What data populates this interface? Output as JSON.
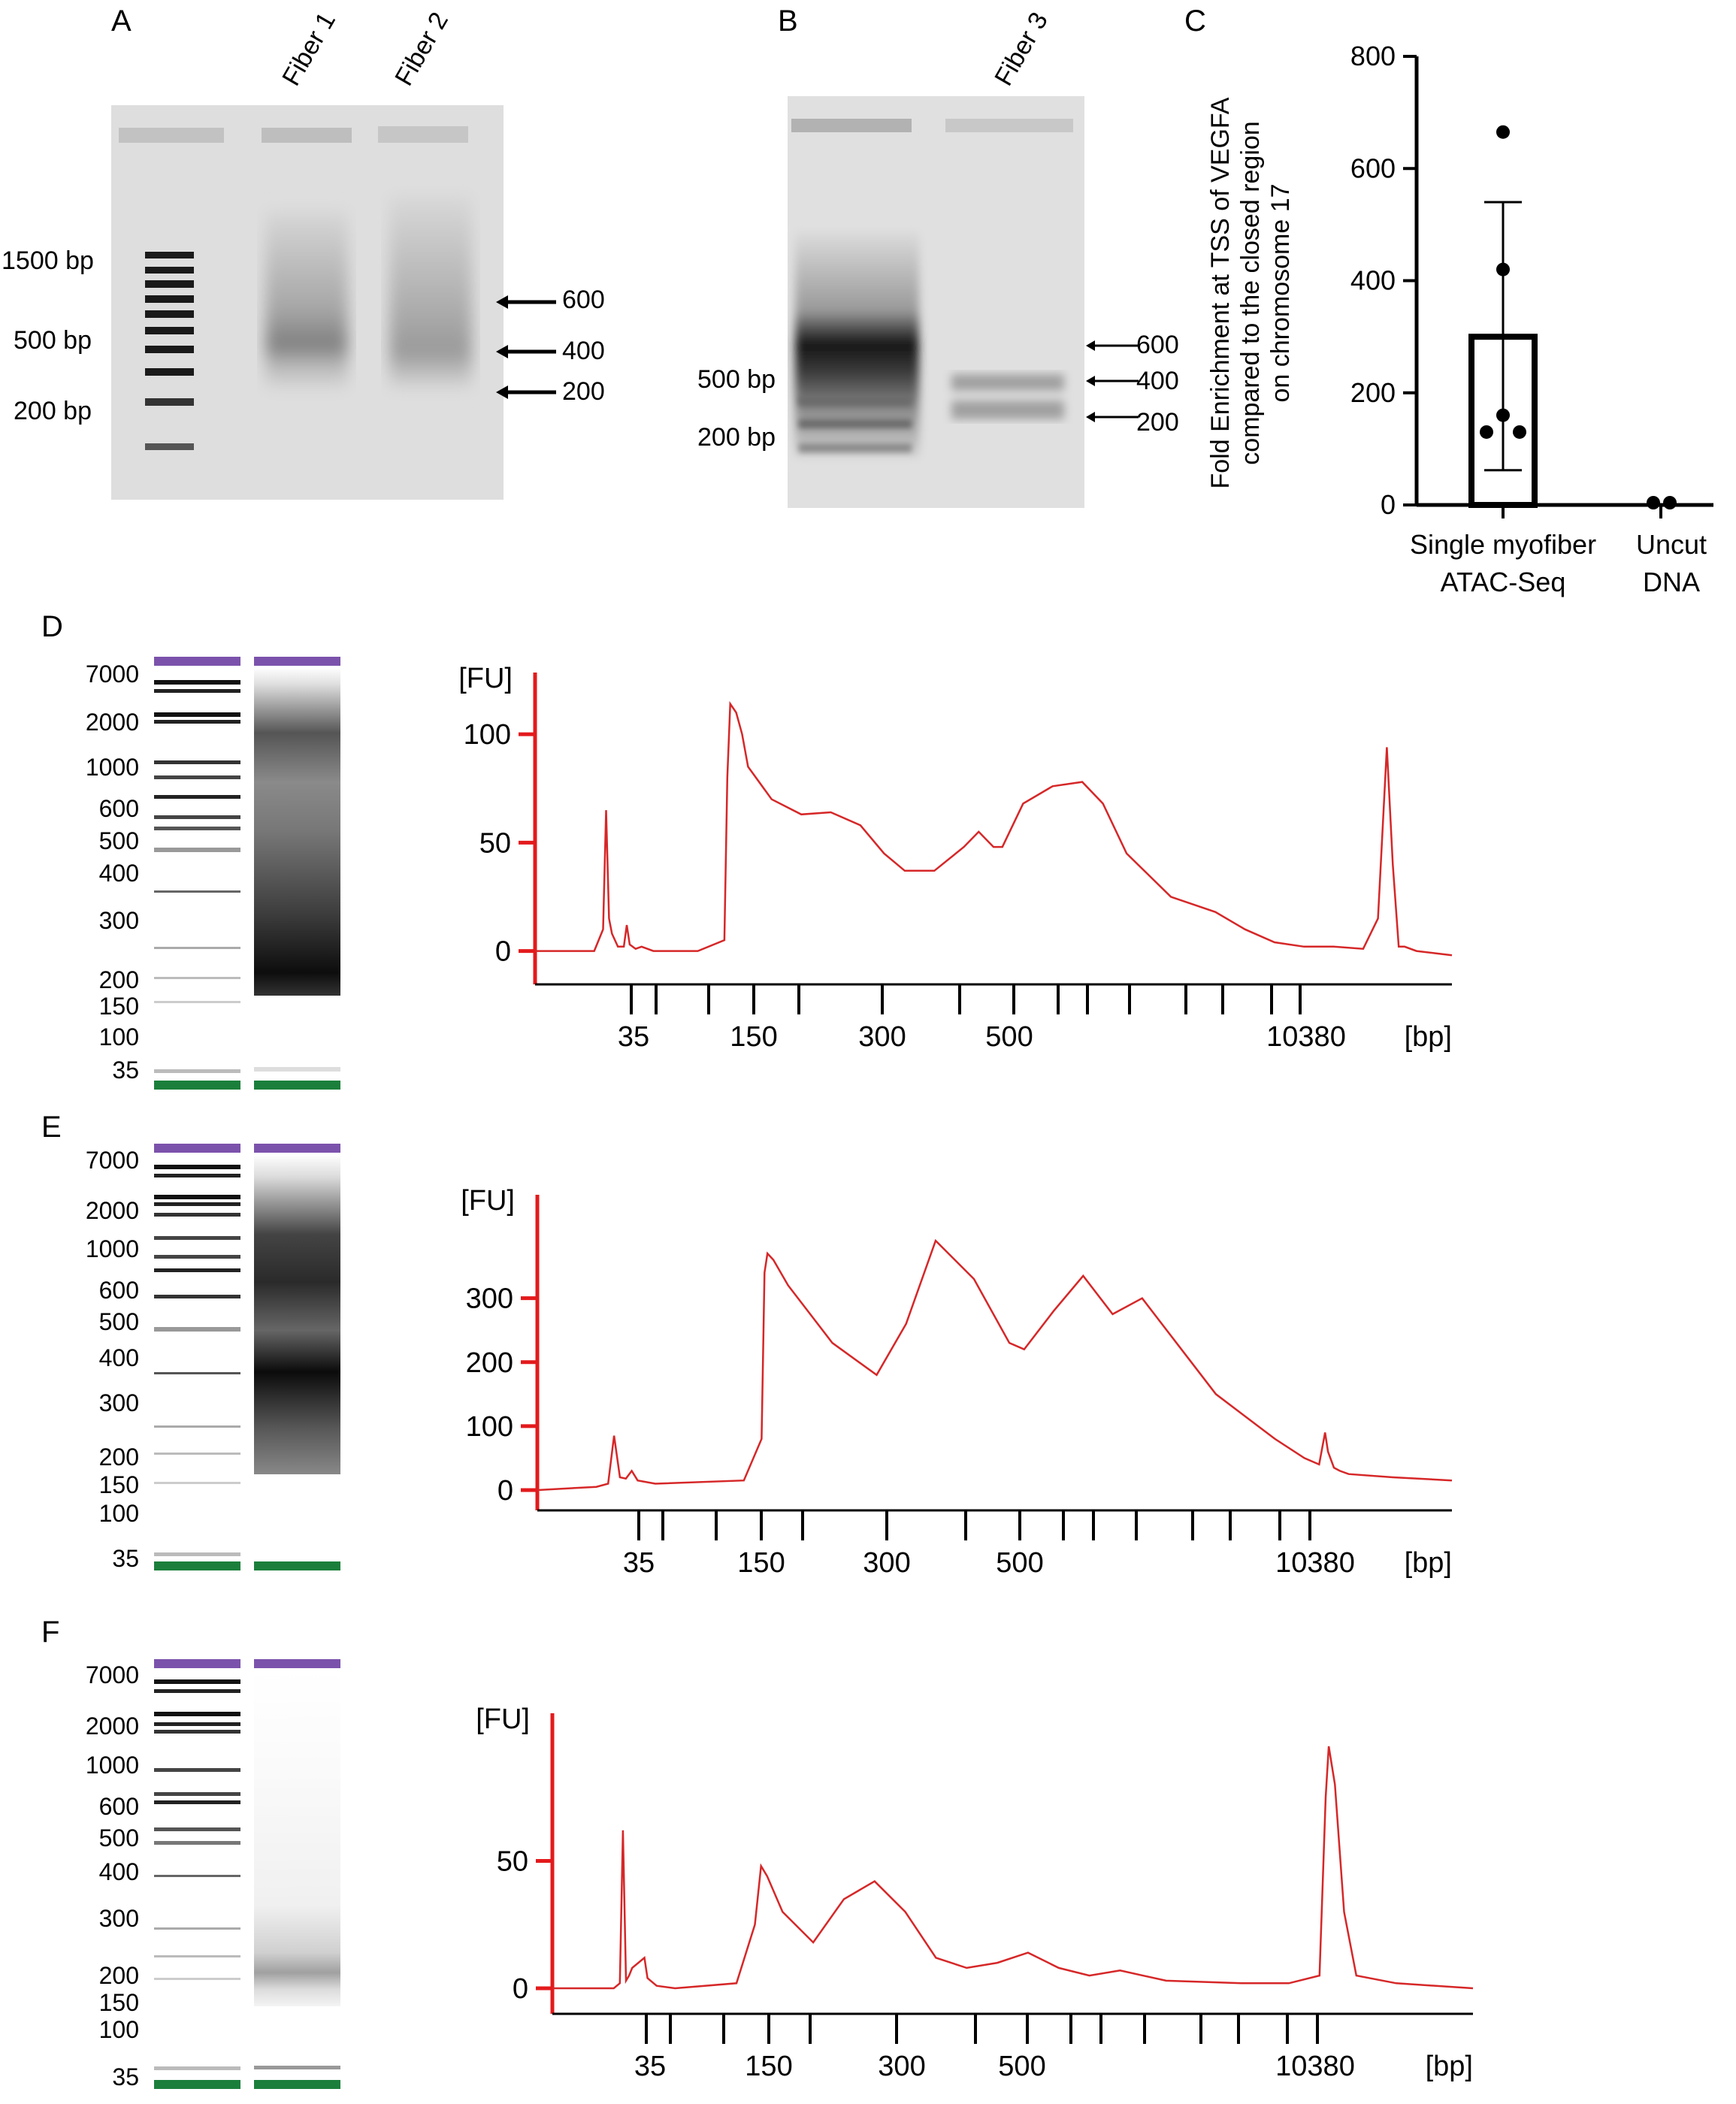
{
  "panels": {
    "A": {
      "letter": "A",
      "lanes": [
        "Fiber 1",
        "Fiber 2"
      ],
      "ladder_labels": [
        "1500 bp",
        "500 bp",
        "200 bp"
      ],
      "arrow_labels": [
        "600",
        "400",
        "200"
      ]
    },
    "B": {
      "letter": "B",
      "lanes": [
        "Fiber 3"
      ],
      "ladder_labels": [
        "500 bp",
        "200 bp"
      ],
      "arrow_labels": [
        "600",
        "400",
        "200"
      ]
    },
    "C": {
      "letter": "C",
      "ylabel_lines": [
        "Fold Enrichment at TSS of VEGFA",
        "compared to the closed region",
        "on chromosome 17"
      ],
      "categories": [
        [
          "Single myofiber",
          "ATAC-Seq"
        ],
        [
          "Uncut",
          "DNA"
        ]
      ]
    },
    "D": {
      "letter": "D"
    },
    "E": {
      "letter": "E"
    },
    "F": {
      "letter": "F"
    }
  },
  "gel_ladder_labels": [
    "7000",
    "2000",
    "1000",
    "600",
    "500",
    "400",
    "300",
    "200",
    "150",
    "100",
    "35"
  ],
  "trace_axis": {
    "y_unit": "[FU]",
    "x_unit": "[bp]",
    "x_tick_labels": [
      "35",
      "150",
      "300",
      "500",
      "10380"
    ]
  },
  "colors": {
    "trace": "#d62728",
    "axis_red": "#e31a1c",
    "marker_upper": "#7b52ab",
    "marker_lower": "#1b7f3b"
  },
  "chart_data": [
    {
      "type": "bar",
      "panel": "C",
      "categories": [
        "Single myofiber ATAC-Seq",
        "Uncut DNA"
      ],
      "values": [
        300,
        0
      ],
      "error": [
        [
          62,
          540
        ],
        [
          0,
          0
        ]
      ],
      "points": [
        [
          665,
          420,
          160,
          130,
          130
        ],
        [
          0,
          0
        ]
      ],
      "ylim": [
        0,
        800
      ],
      "yticks": [
        0,
        200,
        400,
        600,
        800
      ]
    },
    {
      "type": "line",
      "panel": "D",
      "yticks": [
        0,
        50,
        100
      ],
      "ylim": [
        -5,
        125
      ],
      "x": [
        0,
        20,
        23,
        24,
        25,
        26,
        28,
        30,
        31,
        32,
        34,
        36,
        40,
        55,
        64,
        65,
        66,
        68,
        70,
        72,
        80,
        90,
        100,
        110,
        118,
        125,
        135,
        145,
        150,
        155,
        158,
        165,
        175,
        185,
        192,
        200,
        215,
        230,
        240,
        250,
        260,
        270,
        280,
        285,
        288,
        290,
        292,
        294,
        298,
        310
      ],
      "y": [
        0,
        0,
        10,
        65,
        15,
        8,
        2,
        2,
        12,
        3,
        1,
        2,
        0,
        0,
        5,
        80,
        114,
        110,
        100,
        85,
        70,
        63,
        64,
        58,
        45,
        37,
        37,
        48,
        55,
        48,
        48,
        68,
        76,
        78,
        68,
        45,
        25,
        18,
        10,
        4,
        2,
        2,
        1,
        15,
        94,
        40,
        2,
        2,
        0,
        -2
      ]
    },
    {
      "type": "line",
      "panel": "E",
      "yticks": [
        0,
        100,
        200,
        300
      ],
      "ylim": [
        -20,
        450
      ],
      "x": [
        0,
        20,
        24,
        26,
        28,
        30,
        32,
        34,
        40,
        70,
        76,
        77,
        78,
        80,
        85,
        100,
        115,
        125,
        135,
        148,
        160,
        165,
        175,
        185,
        195,
        205,
        215,
        230,
        250,
        260,
        265,
        267,
        268,
        270,
        272,
        275,
        290,
        310
      ],
      "y": [
        0,
        5,
        10,
        85,
        20,
        18,
        30,
        15,
        10,
        15,
        80,
        340,
        370,
        360,
        320,
        230,
        180,
        260,
        390,
        330,
        230,
        220,
        280,
        335,
        275,
        300,
        240,
        150,
        80,
        50,
        40,
        90,
        60,
        35,
        30,
        25,
        20,
        15
      ]
    },
    {
      "type": "line",
      "panel": "F",
      "yticks": [
        0,
        50
      ],
      "ylim": [
        -5,
        105
      ],
      "x": [
        0,
        20,
        22,
        23,
        24,
        25,
        26,
        30,
        31,
        32,
        34,
        40,
        60,
        66,
        68,
        70,
        75,
        85,
        95,
        105,
        115,
        125,
        135,
        145,
        155,
        165,
        175,
        185,
        200,
        225,
        240,
        250,
        252,
        253,
        255,
        258,
        262,
        275,
        300
      ],
      "y": [
        0,
        0,
        2,
        62,
        3,
        5,
        8,
        12,
        4,
        3,
        1,
        0,
        2,
        25,
        48,
        44,
        30,
        18,
        35,
        42,
        30,
        12,
        8,
        10,
        14,
        8,
        5,
        7,
        3,
        2,
        2,
        5,
        75,
        95,
        80,
        30,
        5,
        2,
        0
      ]
    }
  ]
}
